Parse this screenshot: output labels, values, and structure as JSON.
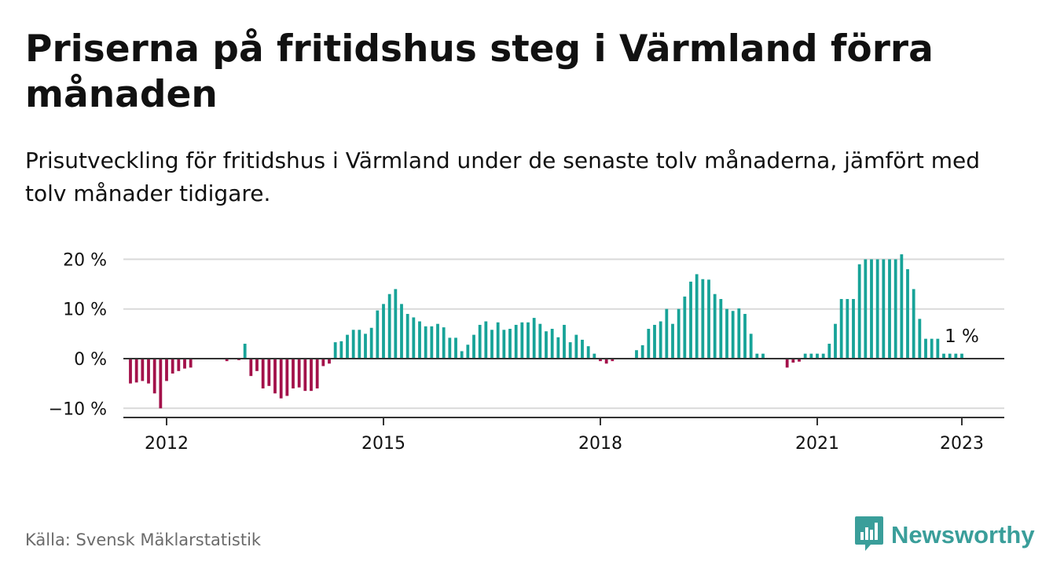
{
  "title": "Priserna på fritidshus steg i Värmland förra månaden",
  "subtitle": "Prisutveckling för fritidshus i Värmland under de senaste tolv månaderna, jämfört med tolv månader tidigare.",
  "source": "Källa: Svensk Mäklarstatistik",
  "brand": "Newsworthy",
  "colors": {
    "positive": "#17a398",
    "negative": "#a3114a",
    "brand": "#3a9e9a",
    "grid": "#d9d9d9",
    "text": "#111111",
    "muted": "#6b6b6b"
  },
  "icons": {
    "brand_logo": "newsworthy-logo-icon"
  },
  "chart_data": {
    "type": "bar",
    "title": "Priserna på fritidshus steg i Värmland förra månaden",
    "xlabel": "",
    "ylabel": "",
    "ylim": [
      -11,
      20
    ],
    "y_ticks": [
      {
        "value": 20,
        "label": "20 %"
      },
      {
        "value": 10,
        "label": "10 %"
      },
      {
        "value": 0,
        "label": "0 %"
      },
      {
        "value": -10,
        "label": "−10 %"
      }
    ],
    "x_ticks": [
      {
        "value": "2012-01",
        "label": "2012"
      },
      {
        "value": "2015-01",
        "label": "2015"
      },
      {
        "value": "2018-01",
        "label": "2018"
      },
      {
        "value": "2021-01",
        "label": "2021"
      },
      {
        "value": "2023-01",
        "label": "2023"
      }
    ],
    "annotation": {
      "x": "2023-01",
      "label": "1 %"
    },
    "grid": true,
    "legend": "none",
    "series": [
      {
        "x": [
          "2011-07",
          "2011-08",
          "2011-09",
          "2011-10",
          "2011-11",
          "2011-12",
          "2012-01",
          "2012-02",
          "2012-03",
          "2012-04",
          "2012-05",
          "2012-06",
          "2012-07",
          "2012-08",
          "2012-09",
          "2012-10",
          "2012-11",
          "2012-12",
          "2013-01",
          "2013-02",
          "2013-03",
          "2013-04",
          "2013-05",
          "2013-06",
          "2013-07",
          "2013-08",
          "2013-09",
          "2013-10",
          "2013-11",
          "2013-12",
          "2014-01",
          "2014-02",
          "2014-03",
          "2014-04",
          "2014-05",
          "2014-06",
          "2014-07",
          "2014-08",
          "2014-09",
          "2014-10",
          "2014-11",
          "2014-12",
          "2015-01",
          "2015-02",
          "2015-03",
          "2015-04",
          "2015-05",
          "2015-06",
          "2015-07",
          "2015-08",
          "2015-09",
          "2015-10",
          "2015-11",
          "2015-12",
          "2016-01",
          "2016-02",
          "2016-03",
          "2016-04",
          "2016-05",
          "2016-06",
          "2016-07",
          "2016-08",
          "2016-09",
          "2016-10",
          "2016-11",
          "2016-12",
          "2017-01",
          "2017-02",
          "2017-03",
          "2017-04",
          "2017-05",
          "2017-06",
          "2017-07",
          "2017-08",
          "2017-09",
          "2017-10",
          "2017-11",
          "2017-12",
          "2018-01",
          "2018-02",
          "2018-03",
          "2018-04",
          "2018-05",
          "2018-06",
          "2018-07",
          "2018-08",
          "2018-09",
          "2018-10",
          "2018-11",
          "2018-12",
          "2019-01",
          "2019-02",
          "2019-03",
          "2019-04",
          "2019-05",
          "2019-06",
          "2019-07",
          "2019-08",
          "2019-09",
          "2019-10",
          "2019-11",
          "2019-12",
          "2020-01",
          "2020-02",
          "2020-03",
          "2020-04",
          "2020-05",
          "2020-06",
          "2020-07",
          "2020-08",
          "2020-09",
          "2020-10",
          "2020-11",
          "2020-12",
          "2021-01",
          "2021-02",
          "2021-03",
          "2021-04",
          "2021-05",
          "2021-06",
          "2021-07",
          "2021-08",
          "2021-09",
          "2021-10",
          "2021-11",
          "2021-12",
          "2022-01",
          "2022-02",
          "2022-03",
          "2022-04",
          "2022-05",
          "2022-06",
          "2022-07",
          "2022-08",
          "2022-09",
          "2022-10",
          "2022-11",
          "2022-12",
          "2023-01"
        ],
        "values": [
          -5,
          -4.8,
          -4.5,
          -5,
          -7,
          -10,
          -4.5,
          -3,
          -2.5,
          -2,
          -1.8,
          0,
          0,
          0,
          0,
          0,
          -0.5,
          0,
          -0.3,
          3,
          -3.5,
          -2.5,
          -6,
          -5.5,
          -7,
          -8,
          -7.5,
          -6,
          -5.8,
          -6.5,
          -6.5,
          -6,
          -1.5,
          -1,
          3.3,
          3.5,
          4.8,
          5.8,
          5.8,
          5,
          6.2,
          9.7,
          11,
          13,
          14,
          11,
          9,
          8.3,
          7.5,
          6.5,
          6.5,
          7,
          6.3,
          4.2,
          4.2,
          1.5,
          2.8,
          4.8,
          6.8,
          7.5,
          5.8,
          7.3,
          5.8,
          6,
          6.8,
          7.3,
          7.3,
          8.2,
          7,
          5.5,
          6,
          4.3,
          6.8,
          3.3,
          4.8,
          3.8,
          2.5,
          1,
          -0.5,
          -1,
          -0.5,
          0,
          0,
          0,
          1.7,
          2.7,
          6,
          6.8,
          7.5,
          10,
          7,
          10,
          12.5,
          15.5,
          17,
          16,
          15.9,
          13,
          12,
          10,
          9.6,
          10.1,
          9,
          5,
          1,
          1,
          0,
          0,
          0,
          -1.8,
          -0.8,
          -0.6,
          1,
          1,
          1,
          1,
          3,
          7,
          12,
          12,
          12,
          19,
          20,
          20,
          20,
          20,
          20,
          20,
          21,
          18,
          14,
          8,
          4,
          4,
          4,
          1,
          1,
          1,
          1
        ]
      }
    ]
  }
}
